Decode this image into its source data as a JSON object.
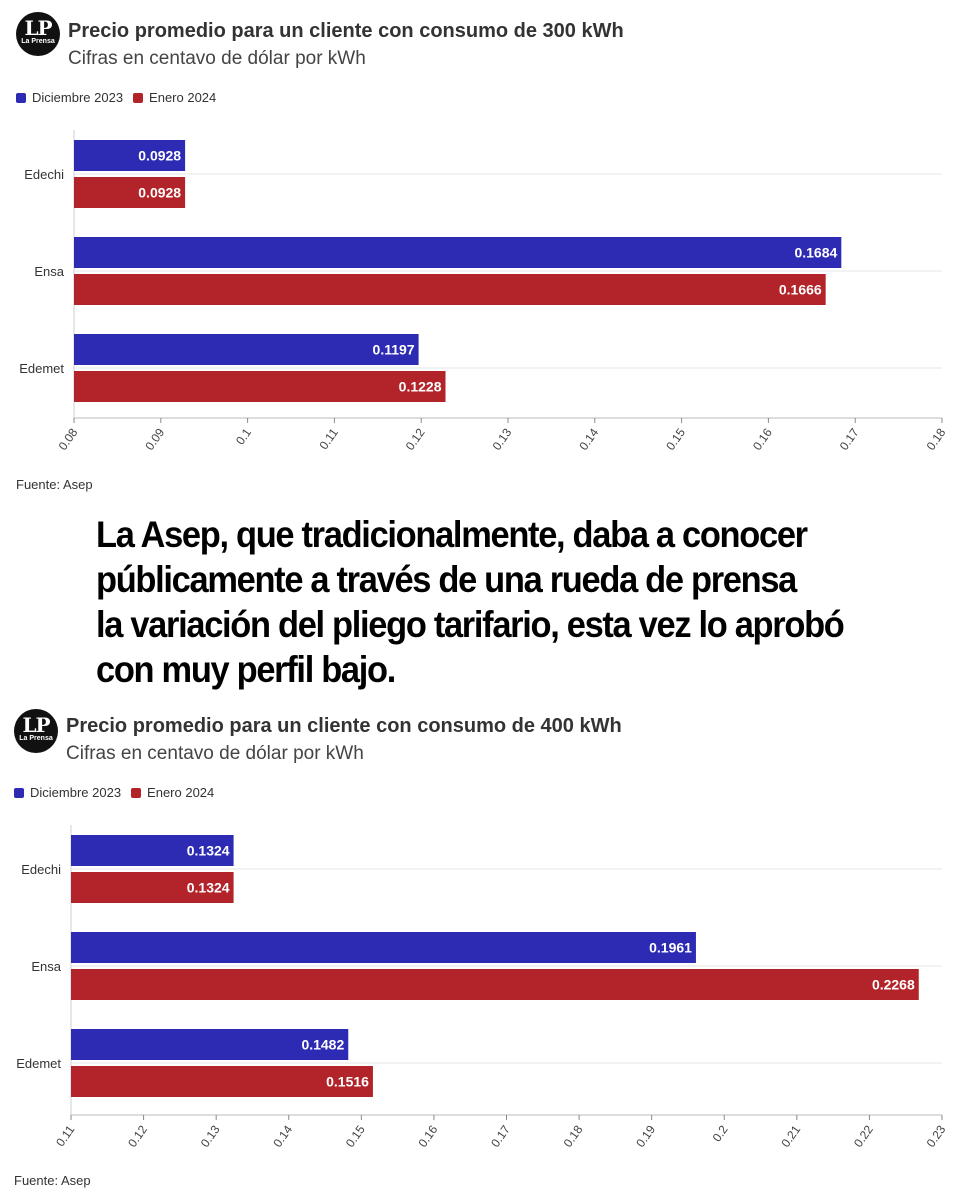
{
  "brand": {
    "logo_text": "LP",
    "logo_subtext": "La Prensa"
  },
  "colors": {
    "dec2023": "#2d2bb4",
    "jan2024": "#b3242a",
    "grid": "#e6e6e6",
    "axis": "#555555"
  },
  "quote": {
    "lines": [
      "La Asep, que tradicionalmente, daba a conocer",
      "públicamente a través de una rueda de prensa",
      "la variación del pliego tarifario, esta vez lo aprobó",
      "con muy perfil bajo."
    ]
  },
  "chart_data": [
    {
      "type": "bar",
      "orientation": "horizontal",
      "title": "Precio promedio para un cliente con consumo de 300 kWh",
      "subtitle": "Cifras en centavo de dólar por kWh",
      "source": "Fuente: Asep",
      "legend": [
        "Diciembre 2023",
        "Enero 2024"
      ],
      "categories": [
        "Edechi",
        "Ensa",
        "Edemet"
      ],
      "series": [
        {
          "name": "Diciembre 2023",
          "values": [
            0.0928,
            0.1684,
            0.1197
          ],
          "labels": [
            "0.0928",
            "0.1684",
            "0.1197"
          ]
        },
        {
          "name": "Enero 2024",
          "values": [
            0.0928,
            0.1666,
            0.1228
          ],
          "labels": [
            "0.0928",
            "0.1666",
            "0.1228"
          ]
        }
      ],
      "xlim": [
        0.08,
        0.18
      ],
      "ticks": [
        "0.08",
        "0.09",
        "0.1",
        "0.11",
        "0.12",
        "0.13",
        "0.14",
        "0.15",
        "0.16",
        "0.17",
        "0.18"
      ],
      "grid": true,
      "legend_position": "top-left"
    },
    {
      "type": "bar",
      "orientation": "horizontal",
      "title": "Precio promedio para un cliente con consumo de 400 kWh",
      "subtitle": "Cifras en centavo de dólar por kWh",
      "source": "Fuente: Asep",
      "legend": [
        "Diciembre 2023",
        "Enero 2024"
      ],
      "categories": [
        "Edechi",
        "Ensa",
        "Edemet"
      ],
      "series": [
        {
          "name": "Diciembre 2023",
          "values": [
            0.1324,
            0.1961,
            0.1482
          ],
          "labels": [
            "0.1324",
            "0.1961",
            "0.1482"
          ]
        },
        {
          "name": "Enero 2024",
          "values": [
            0.1324,
            0.2268,
            0.1516
          ],
          "labels": [
            "0.1324",
            "0.2268",
            "0.1516"
          ]
        }
      ],
      "xlim": [
        0.11,
        0.23
      ],
      "ticks": [
        "0.11",
        "0.12",
        "0.13",
        "0.14",
        "0.15",
        "0.16",
        "0.17",
        "0.18",
        "0.19",
        "0.2",
        "0.21",
        "0.22",
        "0.23"
      ],
      "grid": true,
      "legend_position": "top-left"
    }
  ]
}
